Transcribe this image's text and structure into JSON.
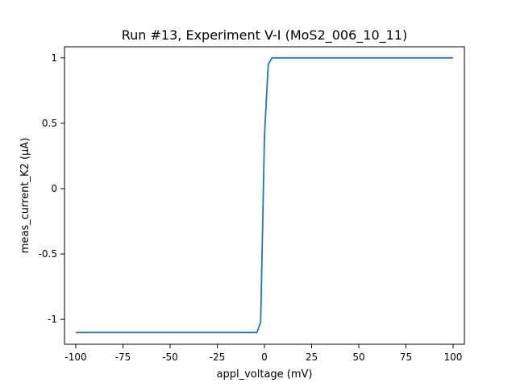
{
  "chart_data": {
    "type": "line",
    "title": "Run #13, Experiment V-I (MoS2_006_10_11)",
    "xlabel": "appl_voltage (mV)",
    "ylabel": "meas_current_K2 (µA)",
    "xlim": [
      -106,
      106
    ],
    "ylim": [
      -1.19,
      1.085
    ],
    "grid": false,
    "x_ticks": [
      -100,
      -75,
      -50,
      -25,
      0,
      25,
      50,
      75,
      100
    ],
    "x_tick_labels": [
      "-100",
      "-75",
      "-50",
      "-25",
      "0",
      "25",
      "50",
      "75",
      "100"
    ],
    "y_ticks": [
      -1,
      -0.5,
      0,
      0.5,
      1
    ],
    "y_tick_labels": [
      "-1",
      "-0.5",
      "0",
      "0.5",
      "1"
    ],
    "series": [
      {
        "color": "#1f77b4",
        "x": [
          -100,
          -4,
          -2,
          0,
          2,
          4,
          100
        ],
        "y": [
          -1.1,
          -1.1,
          -1.02,
          0.4,
          0.95,
          1.0,
          1.0
        ]
      }
    ]
  }
}
